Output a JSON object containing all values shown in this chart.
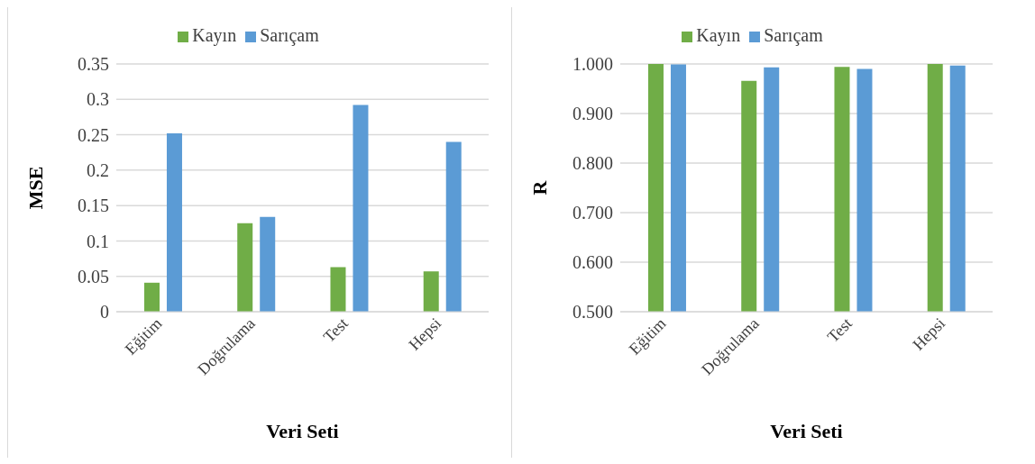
{
  "chart_data": [
    {
      "type": "bar",
      "categories": [
        "Eğitim",
        "Doğrulama",
        "Test",
        "Hepsi"
      ],
      "xlabel": "Veri Seti",
      "ylabel": "MSE",
      "ylim": [
        0,
        0.35
      ],
      "yticks": [
        0,
        0.05,
        0.1,
        0.15,
        0.2,
        0.25,
        0.3,
        0.35
      ],
      "grid": "y",
      "legend": "top",
      "series": [
        {
          "name": "Kayın",
          "color": "#70ad47",
          "values": [
            0.041,
            0.125,
            0.063,
            0.057
          ]
        },
        {
          "name": "Sarıçam",
          "color": "#5b9bd5",
          "values": [
            0.252,
            0.134,
            0.292,
            0.24
          ]
        }
      ]
    },
    {
      "type": "bar",
      "categories": [
        "Eğitim",
        "Doğrulama",
        "Test",
        "Hepsi"
      ],
      "xlabel": "Veri Seti",
      "ylabel": "R",
      "ylim": [
        0.5,
        1.0
      ],
      "yticks": [
        {
          "value": 0.5,
          "label": "0.500"
        },
        {
          "value": 0.6,
          "label": "0.600"
        },
        {
          "value": 0.7,
          "label": "0.700"
        },
        {
          "value": 0.8,
          "label": "0.800"
        },
        {
          "value": 0.9,
          "label": "0.900"
        },
        {
          "value": 1.0,
          "label": "1.000"
        }
      ],
      "grid": "y",
      "legend": "top",
      "series": [
        {
          "name": "Kayın",
          "color": "#70ad47",
          "values": [
            1.0,
            0.966,
            0.994,
            1.0
          ]
        },
        {
          "name": "Sarıçam",
          "color": "#5b9bd5",
          "values": [
            0.999,
            0.993,
            0.99,
            0.997
          ]
        }
      ]
    }
  ]
}
